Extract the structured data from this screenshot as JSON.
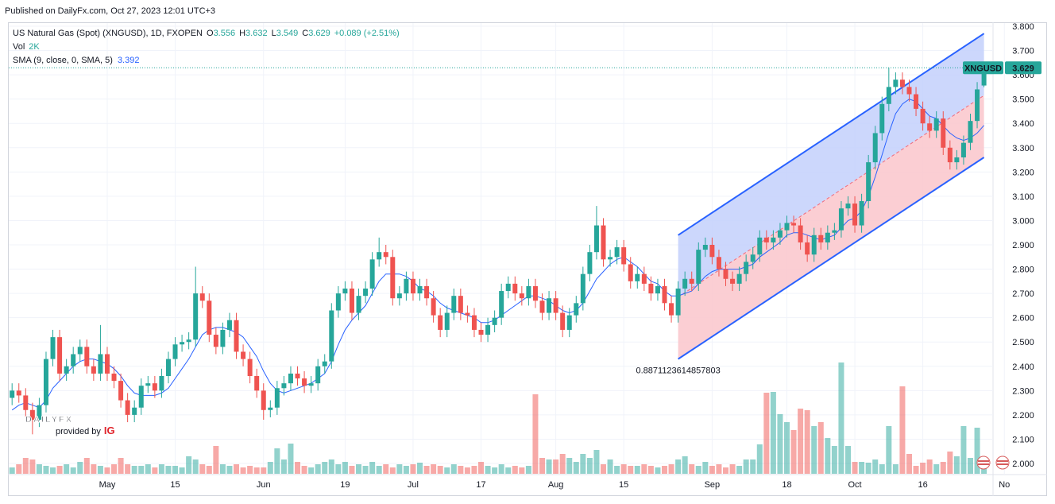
{
  "chart_data": {
    "type": "candlestick",
    "published": "Published on DailyFx.com, Oct 27, 2023 12:01 UTC+3",
    "title": "US Natural Gas (Spot) (XNGUSD), 1D, FXOPEN",
    "legend_prefixes": {
      "open": "O",
      "high": "H",
      "low": "L",
      "close": "C"
    },
    "change_label": "+0.089 (+2.51%)",
    "volume_title": "Vol",
    "volume_last_label": "2K",
    "sma_title": "SMA (9, close, 0, SMA, 5)",
    "symbol_tag": "XNGUSD",
    "watermark": {
      "brand_a": "DAILY",
      "brand_b": "FX",
      "provided_by": "provided by",
      "ig": "IG"
    },
    "colors": {
      "up": "#26a69a",
      "down": "#ef5350"
    },
    "xlim": [
      0,
      143
    ],
    "xticks": [
      {
        "value": 14,
        "label": "May"
      },
      {
        "value": 24,
        "label": "15"
      },
      {
        "value": 37,
        "label": "Jun"
      },
      {
        "value": 49,
        "label": "19"
      },
      {
        "value": 59,
        "label": "Jul"
      },
      {
        "value": 69,
        "label": "17"
      },
      {
        "value": 80,
        "label": "Aug"
      },
      {
        "value": 90,
        "label": "15"
      },
      {
        "value": 103,
        "label": "Sep"
      },
      {
        "value": 114,
        "label": "18"
      },
      {
        "value": 124,
        "label": "Oct"
      },
      {
        "value": 134,
        "label": "16"
      },
      {
        "value": 146,
        "label": "No"
      }
    ],
    "ylim": [
      2.0,
      3.8
    ],
    "yticks": [
      {
        "value": 2.0,
        "label": "2.000"
      },
      {
        "value": 2.1,
        "label": "2.100"
      },
      {
        "value": 2.2,
        "label": "2.200"
      },
      {
        "value": 2.3,
        "label": "2.300"
      },
      {
        "value": 2.4,
        "label": "2.400"
      },
      {
        "value": 2.5,
        "label": "2.500"
      },
      {
        "value": 2.6,
        "label": "2.600"
      },
      {
        "value": 2.7,
        "label": "2.700"
      },
      {
        "value": 2.8,
        "label": "2.800"
      },
      {
        "value": 2.9,
        "label": "2.900"
      },
      {
        "value": 3.0,
        "label": "3.000"
      },
      {
        "value": 3.1,
        "label": "3.100"
      },
      {
        "value": 3.2,
        "label": "3.200"
      },
      {
        "value": 3.3,
        "label": "3.300"
      },
      {
        "value": 3.4,
        "label": "3.400"
      },
      {
        "value": 3.5,
        "label": "3.500"
      },
      {
        "value": 3.6,
        "label": "3.600"
      },
      {
        "value": 3.7,
        "label": "3.700"
      },
      {
        "value": 3.8,
        "label": "3.800"
      }
    ],
    "grid": true,
    "open": [
      2.27,
      2.3,
      2.28,
      2.22,
      2.18,
      2.24,
      2.43,
      2.52,
      2.37,
      2.4,
      2.45,
      2.48,
      2.4,
      2.37,
      2.45,
      2.37,
      2.34,
      2.26,
      2.2,
      2.23,
      2.32,
      2.33,
      2.3,
      2.36,
      2.43,
      2.49,
      2.5,
      2.51,
      2.7,
      2.67,
      2.53,
      2.48,
      2.55,
      2.59,
      2.46,
      2.43,
      2.36,
      2.3,
      2.22,
      2.23,
      2.31,
      2.33,
      2.37,
      2.35,
      2.32,
      2.33,
      2.4,
      2.42,
      2.63,
      2.7,
      2.72,
      2.62,
      2.69,
      2.72,
      2.84,
      2.87,
      2.85,
      2.68,
      2.7,
      2.76,
      2.7,
      2.73,
      2.68,
      2.61,
      2.55,
      2.62,
      2.69,
      2.62,
      2.61,
      2.55,
      2.53,
      2.57,
      2.6,
      2.71,
      2.74,
      2.7,
      2.68,
      2.73,
      2.67,
      2.62,
      2.68,
      2.62,
      2.55,
      2.61,
      2.66,
      2.78,
      2.87,
      2.98,
      2.84,
      2.85,
      2.89,
      2.82,
      2.75,
      2.78,
      2.74,
      2.7,
      2.73,
      2.66,
      2.61,
      2.72,
      2.76,
      2.74,
      2.88,
      2.9,
      2.85,
      2.8,
      2.76,
      2.74,
      2.78,
      2.83,
      2.86,
      2.93,
      2.91,
      2.93,
      2.96,
      2.99,
      2.98,
      2.91,
      2.86,
      2.94,
      2.91,
      2.95,
      2.96,
      3.05,
      3.07,
      2.98,
      3.08,
      3.24,
      3.36,
      3.48,
      3.55,
      3.58,
      3.55,
      3.52,
      3.46,
      3.4,
      3.37,
      3.42,
      3.3,
      3.24,
      3.26,
      3.32,
      3.41,
      3.556
    ],
    "high": [
      2.33,
      2.33,
      2.31,
      2.25,
      2.27,
      2.46,
      2.55,
      2.55,
      2.43,
      2.48,
      2.51,
      2.51,
      2.43,
      2.57,
      2.48,
      2.4,
      2.37,
      2.29,
      2.26,
      2.35,
      2.36,
      2.36,
      2.39,
      2.46,
      2.52,
      2.53,
      2.54,
      2.81,
      2.73,
      2.7,
      2.56,
      2.58,
      2.62,
      2.62,
      2.49,
      2.46,
      2.39,
      2.33,
      2.26,
      2.34,
      2.36,
      2.4,
      2.4,
      2.38,
      2.36,
      2.43,
      2.45,
      2.66,
      2.73,
      2.75,
      2.75,
      2.72,
      2.75,
      2.87,
      2.93,
      2.9,
      2.88,
      2.73,
      2.79,
      2.79,
      2.76,
      2.76,
      2.71,
      2.64,
      2.65,
      2.72,
      2.72,
      2.65,
      2.64,
      2.58,
      2.6,
      2.63,
      2.74,
      2.77,
      2.77,
      2.73,
      2.76,
      2.76,
      2.7,
      2.71,
      2.71,
      2.65,
      2.64,
      2.69,
      2.81,
      2.9,
      3.06,
      3.01,
      2.88,
      2.92,
      2.92,
      2.85,
      2.81,
      2.81,
      2.77,
      2.76,
      2.76,
      2.69,
      2.75,
      2.79,
      2.79,
      2.91,
      2.93,
      2.93,
      2.88,
      2.83,
      2.79,
      2.81,
      2.86,
      2.89,
      2.96,
      2.96,
      2.96,
      2.99,
      3.02,
      3.02,
      3.01,
      2.94,
      2.97,
      2.97,
      2.98,
      2.99,
      3.08,
      3.1,
      3.1,
      3.11,
      3.27,
      3.39,
      3.51,
      3.63,
      3.61,
      3.61,
      3.58,
      3.55,
      3.49,
      3.43,
      3.45,
      3.45,
      3.33,
      3.29,
      3.35,
      3.44,
      3.57,
      3.632
    ],
    "low": [
      2.24,
      2.25,
      2.19,
      2.12,
      2.15,
      2.21,
      2.4,
      2.34,
      2.34,
      2.37,
      2.42,
      2.37,
      2.34,
      2.34,
      2.34,
      2.31,
      2.23,
      2.17,
      2.17,
      2.2,
      2.29,
      2.27,
      2.27,
      2.33,
      2.4,
      2.46,
      2.47,
      2.48,
      2.64,
      2.5,
      2.45,
      2.45,
      2.52,
      2.43,
      2.4,
      2.33,
      2.27,
      2.18,
      2.19,
      2.2,
      2.28,
      2.3,
      2.32,
      2.29,
      2.29,
      2.3,
      2.37,
      2.39,
      2.6,
      2.67,
      2.59,
      2.59,
      2.66,
      2.69,
      2.81,
      2.82,
      2.65,
      2.65,
      2.67,
      2.67,
      2.67,
      2.65,
      2.58,
      2.52,
      2.52,
      2.59,
      2.59,
      2.58,
      2.52,
      2.5,
      2.5,
      2.54,
      2.57,
      2.68,
      2.67,
      2.65,
      2.65,
      2.64,
      2.59,
      2.59,
      2.59,
      2.52,
      2.52,
      2.58,
      2.63,
      2.75,
      2.84,
      2.81,
      2.81,
      2.82,
      2.79,
      2.72,
      2.72,
      2.71,
      2.67,
      2.67,
      2.63,
      2.58,
      2.58,
      2.69,
      2.71,
      2.71,
      2.85,
      2.82,
      2.77,
      2.73,
      2.71,
      2.71,
      2.75,
      2.8,
      2.83,
      2.88,
      2.88,
      2.9,
      2.93,
      2.95,
      2.88,
      2.83,
      2.83,
      2.88,
      2.88,
      2.92,
      2.93,
      3.02,
      2.95,
      2.95,
      3.05,
      3.21,
      3.33,
      3.45,
      3.52,
      3.52,
      3.49,
      3.43,
      3.37,
      3.34,
      3.34,
      3.27,
      3.21,
      3.21,
      3.23,
      3.29,
      3.38,
      3.549
    ],
    "close": [
      2.3,
      2.28,
      2.22,
      2.18,
      2.24,
      2.43,
      2.52,
      2.37,
      2.4,
      2.45,
      2.48,
      2.4,
      2.37,
      2.45,
      2.37,
      2.34,
      2.26,
      2.2,
      2.23,
      2.32,
      2.33,
      2.3,
      2.36,
      2.43,
      2.49,
      2.5,
      2.51,
      2.7,
      2.67,
      2.53,
      2.48,
      2.55,
      2.59,
      2.46,
      2.43,
      2.36,
      2.3,
      2.22,
      2.23,
      2.31,
      2.33,
      2.37,
      2.35,
      2.32,
      2.33,
      2.4,
      2.42,
      2.63,
      2.7,
      2.72,
      2.62,
      2.69,
      2.72,
      2.84,
      2.87,
      2.85,
      2.68,
      2.7,
      2.76,
      2.7,
      2.73,
      2.68,
      2.61,
      2.55,
      2.62,
      2.69,
      2.62,
      2.61,
      2.55,
      2.53,
      2.57,
      2.6,
      2.71,
      2.74,
      2.7,
      2.68,
      2.73,
      2.67,
      2.62,
      2.68,
      2.62,
      2.55,
      2.61,
      2.66,
      2.78,
      2.87,
      2.98,
      2.84,
      2.85,
      2.89,
      2.82,
      2.75,
      2.78,
      2.74,
      2.7,
      2.73,
      2.66,
      2.61,
      2.72,
      2.76,
      2.74,
      2.88,
      2.9,
      2.85,
      2.8,
      2.76,
      2.74,
      2.78,
      2.83,
      2.86,
      2.93,
      2.91,
      2.93,
      2.96,
      2.99,
      2.98,
      2.91,
      2.86,
      2.94,
      2.91,
      2.95,
      2.96,
      3.05,
      3.07,
      2.98,
      3.08,
      3.24,
      3.36,
      3.48,
      3.55,
      3.58,
      3.55,
      3.52,
      3.46,
      3.4,
      3.37,
      3.42,
      3.3,
      3.24,
      3.26,
      3.32,
      3.41,
      3.54,
      3.629
    ],
    "volume": [
      1040,
      1560,
      2600,
      2340,
      1560,
      1300,
      1040,
      1300,
      1560,
      1040,
      1950,
      2600,
      1560,
      1300,
      1040,
      1560,
      2600,
      1560,
      1300,
      1300,
      1560,
      1040,
      1560,
      1300,
      1300,
      1040,
      2860,
      2340,
      1560,
      1300,
      4550,
      1560,
      1300,
      1560,
      1040,
      1300,
      1040,
      1040,
      1950,
      4160,
      2340,
      4940,
      1950,
      1300,
      1040,
      1560,
      1950,
      2340,
      1560,
      1950,
      1300,
      1560,
      1300,
      1950,
      1300,
      1560,
      1040,
      1560,
      1300,
      1560,
      1820,
      1300,
      1560,
      1300,
      1040,
      1560,
      1300,
      1040,
      1300,
      1950,
      1300,
      1040,
      1560,
      1040,
      1300,
      1040,
      1300,
      13000,
      2600,
      2340,
      2340,
      3250,
      2600,
      1950,
      3250,
      2600,
      3900,
      1560,
      2340,
      1300,
      1560,
      1300,
      1300,
      1560,
      1300,
      1040,
      1300,
      1560,
      2340,
      2860,
      1560,
      1300,
      1950,
      1300,
      1560,
      1040,
      1560,
      1300,
      2340,
      2340,
      4810,
      13260,
      13390,
      9750,
      8450,
      7150,
      10660,
      10400,
      7800,
      8450,
      5850,
      4550,
      18200,
      4550,
      1950,
      1950,
      1820,
      2340,
      1560,
      7800,
      1560,
      14300,
      3250,
      1300,
      1820,
      2340,
      1560,
      1950,
      3640,
      2860,
      7800,
      2600,
      7540,
      2000
    ],
    "sma": {
      "color": "#2962ff",
      "values": [
        2.22,
        2.24,
        2.25,
        2.24,
        2.23,
        2.26,
        2.31,
        2.34,
        2.37,
        2.4,
        2.42,
        2.43,
        2.43,
        2.42,
        2.41,
        2.39,
        2.36,
        2.32,
        2.29,
        2.28,
        2.28,
        2.28,
        2.29,
        2.31,
        2.35,
        2.39,
        2.43,
        2.48,
        2.53,
        2.55,
        2.56,
        2.56,
        2.55,
        2.54,
        2.52,
        2.48,
        2.44,
        2.38,
        2.33,
        2.3,
        2.29,
        2.3,
        2.31,
        2.32,
        2.33,
        2.35,
        2.37,
        2.42,
        2.49,
        2.55,
        2.59,
        2.62,
        2.65,
        2.7,
        2.75,
        2.78,
        2.78,
        2.78,
        2.77,
        2.75,
        2.72,
        2.71,
        2.69,
        2.66,
        2.64,
        2.63,
        2.62,
        2.61,
        2.6,
        2.58,
        2.58,
        2.59,
        2.61,
        2.63,
        2.65,
        2.67,
        2.69,
        2.69,
        2.68,
        2.67,
        2.65,
        2.63,
        2.62,
        2.63,
        2.66,
        2.71,
        2.76,
        2.79,
        2.82,
        2.84,
        2.85,
        2.83,
        2.81,
        2.78,
        2.75,
        2.74,
        2.71,
        2.69,
        2.69,
        2.7,
        2.71,
        2.74,
        2.77,
        2.79,
        2.8,
        2.8,
        2.8,
        2.8,
        2.81,
        2.82,
        2.85,
        2.87,
        2.89,
        2.91,
        2.94,
        2.95,
        2.95,
        2.94,
        2.93,
        2.92,
        2.93,
        2.94,
        2.97,
        3.0,
        3.01,
        3.04,
        3.1,
        3.18,
        3.27,
        3.36,
        3.44,
        3.48,
        3.5,
        3.49,
        3.46,
        3.43,
        3.42,
        3.39,
        3.36,
        3.34,
        3.33,
        3.34,
        3.36,
        3.392
      ]
    },
    "channel": {
      "start": 98,
      "end": 143,
      "upper": [
        2.94,
        3.77
      ],
      "middle": [
        2.685,
        3.515
      ],
      "lower": [
        2.43,
        3.26
      ],
      "pearson": 0.8871123614857803,
      "line_color": "#2962ff",
      "mid_color": "#f06a7b",
      "upper_fill": "#c3d0fb",
      "lower_fill": "#fac5cb"
    }
  }
}
